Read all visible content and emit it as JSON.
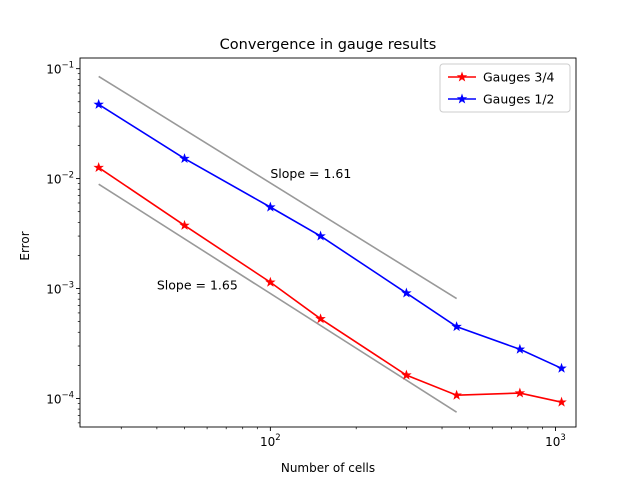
{
  "chart_data": {
    "type": "line",
    "title": "Convergence in gauge results",
    "xlabel": "Number of cells",
    "ylabel": "Error",
    "xscale": "log",
    "yscale": "log",
    "xlim": [
      21.5,
      1180
    ],
    "ylim": [
      5.5e-05,
      0.125
    ],
    "x_major_ticks": [
      {
        "value": 100,
        "base": "10",
        "exp": "2"
      },
      {
        "value": 1000,
        "base": "10",
        "exp": "3"
      }
    ],
    "y_major_ticks": [
      {
        "value": 0.0001,
        "base": "10",
        "exp": "−4"
      },
      {
        "value": 0.001,
        "base": "10",
        "exp": "−3"
      },
      {
        "value": 0.01,
        "base": "10",
        "exp": "−2"
      },
      {
        "value": 0.1,
        "base": "10",
        "exp": "−1"
      }
    ],
    "legend_position": "top-right",
    "series": [
      {
        "name": "Gauges 3/4",
        "color": "#ff0000",
        "marker": "star",
        "x": [
          25,
          50,
          100,
          150,
          300,
          450,
          750,
          1050
        ],
        "y": [
          0.0126,
          0.00375,
          0.00114,
          0.00053,
          0.000163,
          0.000107,
          0.000112,
          9.25e-05
        ]
      },
      {
        "name": "Gauges 1/2",
        "color": "#0000ff",
        "marker": "star",
        "x": [
          25,
          50,
          100,
          150,
          300,
          450,
          750,
          1050
        ],
        "y": [
          0.0473,
          0.0152,
          0.0055,
          0.003,
          0.00091,
          0.00045,
          0.00028,
          0.000188
        ]
      }
    ],
    "reference_lines": [
      {
        "color": "#999999",
        "x": [
          25,
          450
        ],
        "y": [
          0.085,
          0.00081
        ]
      },
      {
        "color": "#999999",
        "x": [
          25,
          450
        ],
        "y": [
          0.0089,
          7.5e-05
        ]
      }
    ],
    "annotations": [
      {
        "text": "Slope = 1.61",
        "x": 100,
        "y": 0.0101
      },
      {
        "text": "Slope = 1.65",
        "x": 40,
        "y": 0.00098
      }
    ]
  }
}
